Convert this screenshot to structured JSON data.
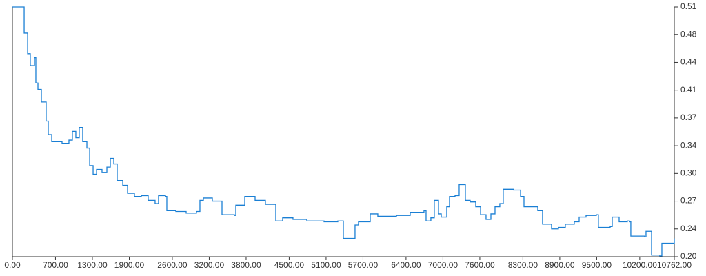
{
  "chart_data": {
    "type": "line",
    "step": "post",
    "y_axis_side": "right",
    "xlim": [
      0,
      10762
    ],
    "xticks": [
      {
        "value": 0,
        "label": "0.00"
      },
      {
        "value": 700,
        "label": "700.00"
      },
      {
        "value": 1300,
        "label": "1300.00"
      },
      {
        "value": 1900,
        "label": "1900.00"
      },
      {
        "value": 2600,
        "label": "2600.00"
      },
      {
        "value": 3200,
        "label": "3200.00"
      },
      {
        "value": 3800,
        "label": "3800.00"
      },
      {
        "value": 4500,
        "label": "4500.00"
      },
      {
        "value": 5100,
        "label": "5100.00"
      },
      {
        "value": 5700,
        "label": "5700.00"
      },
      {
        "value": 6400,
        "label": "6400.00"
      },
      {
        "value": 7000,
        "label": "7000.00"
      },
      {
        "value": 7600,
        "label": "7600.00"
      },
      {
        "value": 8300,
        "label": "8300.00"
      },
      {
        "value": 8900,
        "label": "8900.00"
      },
      {
        "value": 9500,
        "label": "9500.00"
      },
      {
        "value": 10200,
        "label": "10200.00"
      },
      {
        "value": 10762,
        "label": "10762.00"
      }
    ],
    "ylim": [
      0.2,
      0.515
    ],
    "yticks": [
      {
        "value": 0.2,
        "label": "0.20"
      },
      {
        "value": 0.235,
        "label": "0.24"
      },
      {
        "value": 0.27,
        "label": "0.27"
      },
      {
        "value": 0.305,
        "label": "0.30"
      },
      {
        "value": 0.34,
        "label": "0.34"
      },
      {
        "value": 0.375,
        "label": "0.37"
      },
      {
        "value": 0.41,
        "label": "0.41"
      },
      {
        "value": 0.445,
        "label": "0.44"
      },
      {
        "value": 0.48,
        "label": "0.48"
      },
      {
        "value": 0.515,
        "label": "0.51"
      }
    ],
    "color": "#1a7fd4",
    "x": [
      0,
      191,
      247,
      291,
      359,
      381,
      415,
      471,
      549,
      583,
      639,
      717,
      807,
      919,
      975,
      1031,
      1087,
      1143,
      1211,
      1256,
      1312,
      1368,
      1457,
      1536,
      1592,
      1648,
      1704,
      1794,
      1872,
      1984,
      2096,
      2208,
      2320,
      2376,
      2489,
      2511,
      2657,
      2825,
      2993,
      3049,
      3105,
      3251,
      3408,
      3610,
      3632,
      3778,
      3946,
      4114,
      4282,
      4394,
      4562,
      4787,
      5067,
      5291,
      5381,
      5571,
      5627,
      5818,
      5941,
      6244,
      6468,
      6692,
      6726,
      6804,
      6860,
      6928,
      6973,
      7062,
      7107,
      7197,
      7264,
      7365,
      7443,
      7533,
      7612,
      7701,
      7780,
      7847,
      7925,
      7981,
      8150,
      8262,
      8318,
      8542,
      8620,
      8766,
      8878,
      8990,
      9136,
      9215,
      9327,
      9495,
      9528,
      9719,
      9753,
      9865,
      9999,
      10033,
      10055,
      10279,
      10302,
      10358,
      10392,
      10526,
      10560,
      10728,
      10762
    ],
    "values": [
      0.515,
      0.482,
      0.456,
      0.441,
      0.451,
      0.419,
      0.411,
      0.395,
      0.371,
      0.354,
      0.345,
      0.345,
      0.343,
      0.347,
      0.358,
      0.35,
      0.363,
      0.345,
      0.337,
      0.315,
      0.304,
      0.31,
      0.306,
      0.313,
      0.324,
      0.317,
      0.296,
      0.29,
      0.28,
      0.276,
      0.277,
      0.271,
      0.267,
      0.277,
      0.276,
      0.258,
      0.257,
      0.255,
      0.257,
      0.271,
      0.274,
      0.27,
      0.253,
      0.252,
      0.265,
      0.276,
      0.271,
      0.266,
      0.245,
      0.249,
      0.247,
      0.245,
      0.244,
      0.245,
      0.223,
      0.24,
      0.244,
      0.254,
      0.251,
      0.252,
      0.256,
      0.258,
      0.245,
      0.249,
      0.271,
      0.254,
      0.25,
      0.263,
      0.276,
      0.277,
      0.291,
      0.271,
      0.269,
      0.263,
      0.253,
      0.247,
      0.254,
      0.263,
      0.267,
      0.285,
      0.284,
      0.276,
      0.263,
      0.258,
      0.241,
      0.235,
      0.237,
      0.241,
      0.244,
      0.25,
      0.252,
      0.253,
      0.237,
      0.238,
      0.25,
      0.244,
      0.245,
      0.244,
      0.226,
      0.225,
      0.232,
      0.232,
      0.202,
      0.201,
      0.217,
      0.217,
      0.223
    ]
  }
}
